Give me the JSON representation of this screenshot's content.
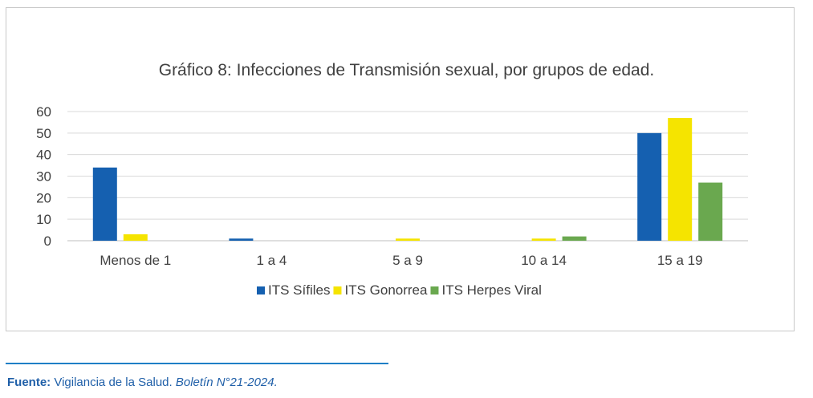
{
  "chart_data": {
    "type": "bar",
    "title": "Gráfico 8: Infecciones de Transmisión sexual, por grupos de edad.",
    "categories": [
      "Menos de 1",
      "1 a 4",
      "5 a 9",
      "10 a 14",
      "15 a 19"
    ],
    "series": [
      {
        "name": "ITS Sífiles",
        "color": "#1560b0",
        "values": [
          34,
          1,
          0,
          0,
          50
        ]
      },
      {
        "name": "ITS Gonorrea",
        "color": "#f5e400",
        "values": [
          3,
          0,
          1,
          1,
          57
        ]
      },
      {
        "name": "ITS Herpes Viral",
        "color": "#6aa84f",
        "values": [
          0,
          0,
          0,
          2,
          27
        ]
      }
    ],
    "ylim": [
      0,
      60
    ],
    "yticks": [
      0,
      10,
      20,
      30,
      40,
      50,
      60
    ],
    "grid": true,
    "legend_position": "bottom"
  },
  "footer": {
    "source_label": "Fuente:",
    "source_text": " Vigilancia de la Salud. ",
    "source_ref": "Boletín N°21-2024."
  }
}
